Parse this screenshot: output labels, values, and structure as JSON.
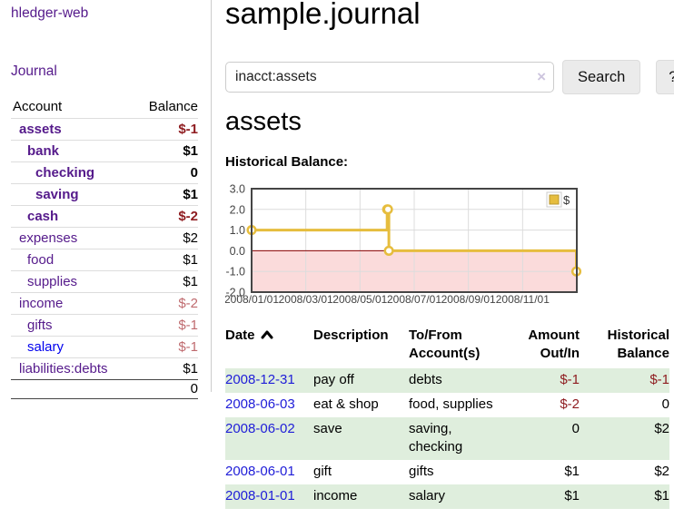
{
  "app": {
    "brand": "hledger-web"
  },
  "nav": {
    "journal": "Journal"
  },
  "sidebar": {
    "header": {
      "account": "Account",
      "balance": "Balance"
    },
    "accounts": [
      {
        "name": "assets",
        "balance": "$-1",
        "indent": 1,
        "bold": true,
        "balance_color": "neg"
      },
      {
        "name": "bank",
        "balance": "$1",
        "indent": 2,
        "bold": true,
        "balance_color": "pos"
      },
      {
        "name": "checking",
        "balance": "0",
        "indent": 3,
        "bold": true,
        "balance_color": "pos"
      },
      {
        "name": "saving",
        "balance": "$1",
        "indent": 3,
        "bold": true,
        "balance_color": "pos"
      },
      {
        "name": "cash",
        "balance": "$-2",
        "indent": 2,
        "bold": true,
        "balance_color": "neg"
      },
      {
        "name": "expenses",
        "balance": "$2",
        "indent": 1,
        "bold": false,
        "balance_color": "pos"
      },
      {
        "name": "food",
        "balance": "$1",
        "indent": 2,
        "bold": false,
        "balance_color": "pos"
      },
      {
        "name": "supplies",
        "balance": "$1",
        "indent": 2,
        "bold": false,
        "balance_color": "pos"
      },
      {
        "name": "income",
        "balance": "$-2",
        "indent": 1,
        "bold": false,
        "balance_color": "mneg"
      },
      {
        "name": "gifts",
        "balance": "$-1",
        "indent": 2,
        "bold": false,
        "balance_color": "mneg"
      },
      {
        "name": "salary",
        "balance": "$-1",
        "indent": 2,
        "bold": false,
        "balance_color": "mneg",
        "link_color": "blue"
      },
      {
        "name": "liabilities:debts",
        "balance": "$1",
        "indent": 1,
        "bold": false,
        "balance_color": "pos"
      }
    ],
    "total": "0"
  },
  "main": {
    "title": "sample.journal",
    "search": {
      "value": "inacct:assets",
      "clear_icon": "×",
      "search_label": "Search",
      "help_label": "?"
    },
    "account_title": "assets",
    "chart_label": "Historical Balance:"
  },
  "chart_data": {
    "type": "line",
    "title": "Historical Balance",
    "xlabel": "",
    "ylabel": "",
    "ylim": [
      -2,
      3
    ],
    "yticks": [
      3.0,
      2.0,
      1.0,
      0.0,
      -1.0,
      -2.0
    ],
    "xtick_labels": [
      "2008/01/01",
      "2008/03/01",
      "2008/05/01",
      "2008/07/01",
      "2008/09/01",
      "2008/11/01"
    ],
    "xtick_months": [
      0,
      2,
      4,
      6,
      8,
      10
    ],
    "x_months_range": [
      0,
      12
    ],
    "grid": true,
    "legend_position": "top-right",
    "legend": [
      {
        "label": "$"
      }
    ],
    "series": [
      {
        "name": "$",
        "step": true,
        "points": [
          {
            "date": "2008-01-01",
            "value": 1
          },
          {
            "date": "2008-06-01",
            "value": 2
          },
          {
            "date": "2008-06-02",
            "value": 2
          },
          {
            "date": "2008-06-03",
            "value": 0
          },
          {
            "date": "2008-12-31",
            "value": -1
          }
        ]
      }
    ],
    "negative_region": {
      "below": 0
    }
  },
  "register": {
    "columns": {
      "date": "Date",
      "description": "Description",
      "account": "To/From Account(s)",
      "amount": "Amount Out/In",
      "balance": "Historical Balance"
    },
    "sort_icon": "chevron-up",
    "rows": [
      {
        "date": "2008-12-31",
        "description": "pay off",
        "accounts": "debts",
        "amount": "$-1",
        "amount_negative": true,
        "balance": "$-1",
        "balance_negative": true
      },
      {
        "date": "2008-06-03",
        "description": "eat & shop",
        "accounts": "food, supplies",
        "amount": "$-2",
        "amount_negative": true,
        "balance": "0",
        "balance_negative": false
      },
      {
        "date": "2008-06-02",
        "description": "save",
        "accounts": "saving, checking",
        "amount": "0",
        "amount_negative": false,
        "balance": "$2",
        "balance_negative": false
      },
      {
        "date": "2008-06-01",
        "description": "gift",
        "accounts": "gifts",
        "amount": "$1",
        "amount_negative": false,
        "balance": "$2",
        "balance_negative": false
      },
      {
        "date": "2008-01-01",
        "description": "income",
        "accounts": "salary",
        "amount": "$1",
        "amount_negative": false,
        "balance": "$1",
        "balance_negative": false
      }
    ]
  },
  "colors": {
    "link_purple": "#551a8b",
    "link_blue": "#0000ee",
    "date_blue": "#1f1dd8",
    "negative": "#8f1d21",
    "muted_negative": "#bf6a6e",
    "row_green": "#dfeedd",
    "chart_line": "#e6bd3e",
    "chart_zero": "#8b0000",
    "chart_negative_bg": "#fbdbdb",
    "chart_border": "#454545",
    "chart_grid": "#dcdcdc"
  }
}
